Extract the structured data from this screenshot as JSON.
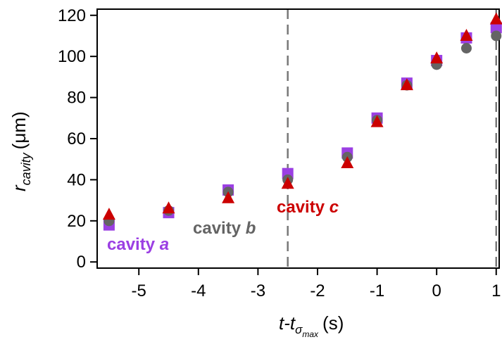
{
  "chart_data": {
    "type": "scatter",
    "title": "",
    "xlabel": {
      "base": "t-t",
      "sub": "σ",
      "subsub": "max",
      "unit": "(s)"
    },
    "ylabel": {
      "base": "r",
      "sub": "cavity",
      "unit": "(μm)"
    },
    "xlim": [
      -5.7,
      1.05
    ],
    "ylim": [
      -3,
      123
    ],
    "xticks": [
      -5,
      -4,
      -3,
      -2,
      -1,
      0,
      1
    ],
    "xtick_labels": [
      "-5",
      "-4",
      "-3",
      "-2",
      "-1",
      "0",
      "1"
    ],
    "yticks": [
      0,
      20,
      40,
      60,
      80,
      100,
      120
    ],
    "ytick_labels": [
      "0",
      "20",
      "40",
      "60",
      "80",
      "100",
      "120"
    ],
    "vlines": [
      -2.5,
      1
    ],
    "grid": false,
    "x": [
      -5.5,
      -4.5,
      -3.5,
      -2.5,
      -1.5,
      -1,
      -0.5,
      0,
      0.5,
      1
    ],
    "series": [
      {
        "name": "cavity a",
        "marker": "square",
        "color": "#9b3fe3",
        "values": [
          18,
          24,
          35,
          43,
          53,
          70,
          87,
          98,
          109,
          114
        ]
      },
      {
        "name": "cavity b",
        "marker": "circle",
        "color": "#646464",
        "values": [
          20,
          25,
          34,
          40,
          51,
          69,
          86,
          96,
          104,
          110
        ]
      },
      {
        "name": "cavity c",
        "marker": "triangle",
        "color": "#cc0000",
        "values": [
          23,
          26,
          31,
          38,
          48,
          68,
          86,
          99,
          110,
          118
        ]
      }
    ],
    "annotations": [
      {
        "text_base": "cavity ",
        "text_italic": "a",
        "color": "#9b3fe3",
        "series": 0
      },
      {
        "text_base": "cavity ",
        "text_italic": "b",
        "color": "#646464",
        "series": 1
      },
      {
        "text_base": "cavity ",
        "text_italic": "c",
        "color": "#cc0000",
        "series": 2
      }
    ]
  }
}
